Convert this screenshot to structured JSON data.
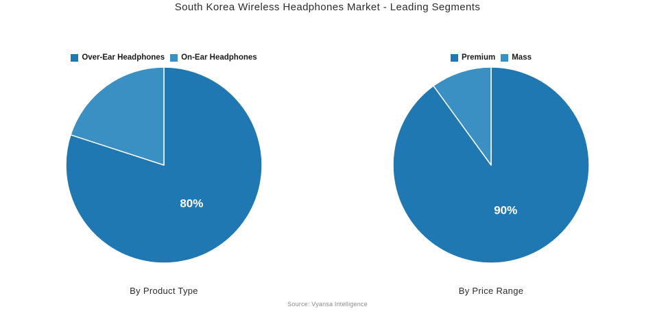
{
  "title": "South Korea Wireless Headphones Market - Leading Segments",
  "source": "Source: Vyansa Intelligence",
  "palette": {
    "primary_blue": "#1f78b1",
    "secondary_blue": "#3a90c2",
    "slice_border": "#ffffff",
    "title_color": "#2b2b2b",
    "source_color": "#8b8b8b"
  },
  "chart_data": [
    {
      "type": "pie",
      "title": "By Product Type",
      "labels": [
        "Over-Ear Headphones",
        "On-Ear Headphones"
      ],
      "values": [
        80,
        20
      ],
      "value_labels": [
        "80%",
        ""
      ],
      "colors": [
        "#1f78b1",
        "#3a90c2"
      ],
      "start_angle": 0,
      "direction": "clockwise",
      "legend_position": "top"
    },
    {
      "type": "pie",
      "title": "By Price Range",
      "labels": [
        "Premium",
        "Mass"
      ],
      "values": [
        90,
        10
      ],
      "value_labels": [
        "90%",
        ""
      ],
      "colors": [
        "#1f78b1",
        "#3a90c2"
      ],
      "start_angle": 0,
      "direction": "clockwise",
      "legend_position": "top"
    }
  ]
}
